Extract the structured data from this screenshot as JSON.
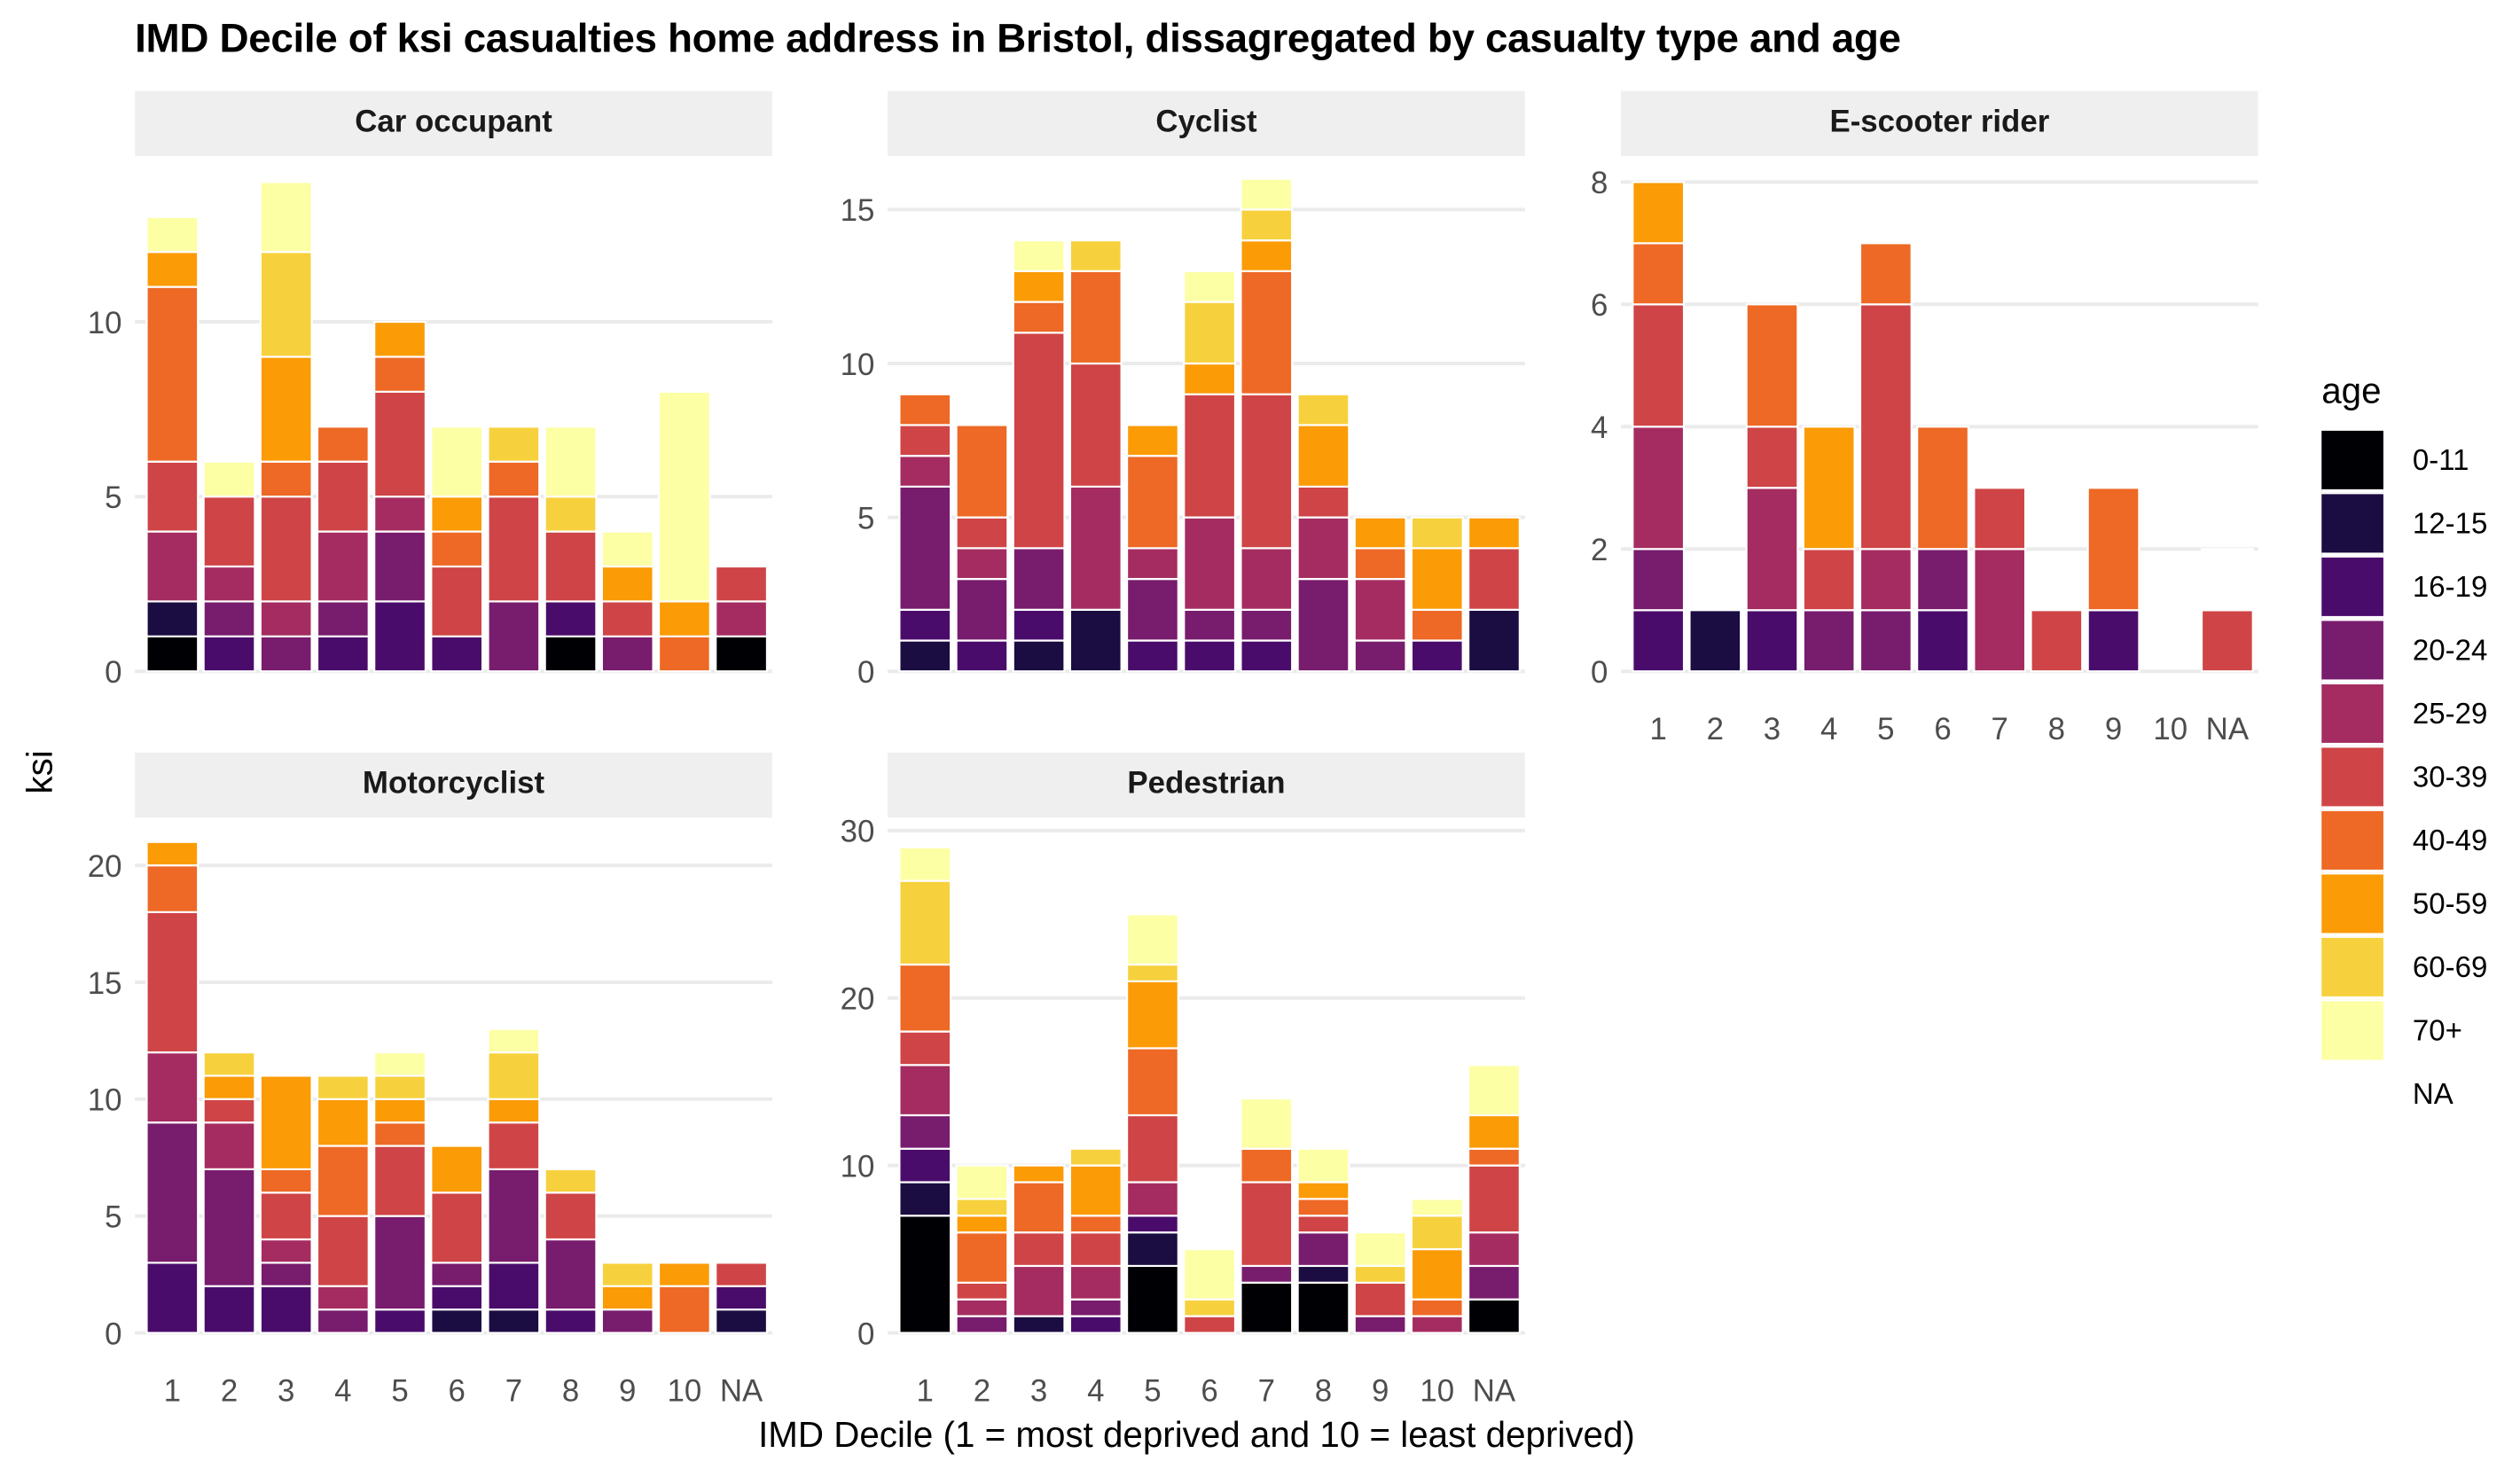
{
  "chart_data": {
    "type": "bar",
    "stacked": true,
    "title": "IMD Decile of ksi casualties home address in Bristol, dissagregated by casualty type and age",
    "xlabel": "IMD Decile (1 = most deprived and 10 = least deprived)",
    "ylabel": "ksi",
    "categories": [
      "1",
      "2",
      "3",
      "4",
      "5",
      "6",
      "7",
      "8",
      "9",
      "10",
      "NA"
    ],
    "legend": {
      "title": "age",
      "position": "right",
      "entries": [
        {
          "label": "0-11",
          "color": "#000004"
        },
        {
          "label": "12-15",
          "color": "#1B0C41"
        },
        {
          "label": "16-19",
          "color": "#4A0C6B"
        },
        {
          "label": "20-24",
          "color": "#781C6D"
        },
        {
          "label": "25-29",
          "color": "#A52C60"
        },
        {
          "label": "30-39",
          "color": "#CF4446"
        },
        {
          "label": "40-49",
          "color": "#ED6925"
        },
        {
          "label": "50-59",
          "color": "#FB9B06"
        },
        {
          "label": "60-69",
          "color": "#F7D13D"
        },
        {
          "label": "70+",
          "color": "#FCFFA4"
        },
        {
          "label": "NA",
          "color": "#FFFFFF"
        }
      ]
    },
    "grid": true,
    "panels": [
      {
        "name": "Car occupant",
        "ylim": [
          0,
          14
        ],
        "yticks": [
          0,
          5,
          10
        ],
        "show_x_ticks": false,
        "series": [
          {
            "name": "0-11",
            "values": [
              1,
              0,
              0,
              0,
              0,
              0,
              0,
              1,
              0,
              0,
              1
            ]
          },
          {
            "name": "12-15",
            "values": [
              1,
              0,
              0,
              0,
              0,
              0,
              0,
              0,
              0,
              0,
              0
            ]
          },
          {
            "name": "16-19",
            "values": [
              0,
              1,
              0,
              1,
              2,
              1,
              0,
              1,
              0,
              0,
              0
            ]
          },
          {
            "name": "20-24",
            "values": [
              0,
              1,
              1,
              1,
              2,
              0,
              2,
              0,
              1,
              0,
              0
            ]
          },
          {
            "name": "25-29",
            "values": [
              2,
              1,
              1,
              2,
              1,
              0,
              0,
              0,
              0,
              0,
              1
            ]
          },
          {
            "name": "30-39",
            "values": [
              2,
              2,
              3,
              2,
              3,
              2,
              3,
              2,
              1,
              0,
              1
            ]
          },
          {
            "name": "40-49",
            "values": [
              5,
              0,
              1,
              1,
              1,
              1,
              1,
              0,
              0,
              1,
              0
            ]
          },
          {
            "name": "50-59",
            "values": [
              1,
              0,
              3,
              0,
              1,
              1,
              0,
              0,
              1,
              1,
              0
            ]
          },
          {
            "name": "60-69",
            "values": [
              0,
              0,
              3,
              0,
              0,
              0,
              1,
              1,
              0,
              0,
              0
            ]
          },
          {
            "name": "70+",
            "values": [
              1,
              1,
              2,
              0,
              0,
              2,
              0,
              2,
              1,
              6,
              0
            ]
          },
          {
            "name": "NA",
            "values": [
              0,
              0,
              0,
              0,
              0,
              0,
              0,
              0,
              0,
              0,
              0
            ]
          }
        ]
      },
      {
        "name": "Cyclist",
        "ylim": [
          0,
          16
        ],
        "yticks": [
          0,
          5,
          10,
          15
        ],
        "show_x_ticks": false,
        "series": [
          {
            "name": "0-11",
            "values": [
              0,
              0,
              0,
              0,
              0,
              0,
              0,
              0,
              0,
              0,
              0
            ]
          },
          {
            "name": "12-15",
            "values": [
              1,
              0,
              1,
              2,
              0,
              0,
              0,
              0,
              0,
              0,
              2
            ]
          },
          {
            "name": "16-19",
            "values": [
              1,
              1,
              1,
              0,
              1,
              1,
              1,
              0,
              0,
              1,
              0
            ]
          },
          {
            "name": "20-24",
            "values": [
              4,
              2,
              2,
              0,
              2,
              1,
              1,
              3,
              1,
              0,
              0
            ]
          },
          {
            "name": "25-29",
            "values": [
              1,
              1,
              0,
              4,
              1,
              3,
              2,
              2,
              2,
              0,
              0
            ]
          },
          {
            "name": "30-39",
            "values": [
              1,
              1,
              7,
              4,
              0,
              4,
              5,
              1,
              0,
              0,
              2
            ]
          },
          {
            "name": "40-49",
            "values": [
              1,
              3,
              1,
              3,
              3,
              0,
              4,
              0,
              1,
              1,
              0
            ]
          },
          {
            "name": "50-59",
            "values": [
              0,
              0,
              1,
              0,
              1,
              1,
              1,
              2,
              1,
              2,
              1
            ]
          },
          {
            "name": "60-69",
            "values": [
              0,
              0,
              0,
              1,
              0,
              2,
              1,
              1,
              0,
              1,
              0
            ]
          },
          {
            "name": "70+",
            "values": [
              0,
              0,
              1,
              0,
              0,
              1,
              1,
              0,
              0,
              0,
              0
            ]
          },
          {
            "name": "NA",
            "values": [
              0,
              0,
              0,
              0,
              0,
              0,
              0,
              0,
              0,
              0,
              0
            ]
          }
        ]
      },
      {
        "name": "E-scooter rider",
        "ylim": [
          0,
          8
        ],
        "yticks": [
          0,
          2,
          4,
          6,
          8
        ],
        "show_x_ticks": true,
        "series": [
          {
            "name": "0-11",
            "values": [
              0,
              0,
              0,
              0,
              0,
              0,
              0,
              0,
              0,
              0,
              0
            ]
          },
          {
            "name": "12-15",
            "values": [
              0,
              1,
              0,
              0,
              0,
              0,
              0,
              0,
              0,
              0,
              0
            ]
          },
          {
            "name": "16-19",
            "values": [
              1,
              0,
              1,
              0,
              0,
              1,
              0,
              0,
              1,
              0,
              0
            ]
          },
          {
            "name": "20-24",
            "values": [
              1,
              0,
              0,
              1,
              1,
              1,
              0,
              0,
              0,
              0,
              0
            ]
          },
          {
            "name": "25-29",
            "values": [
              2,
              0,
              2,
              0,
              1,
              0,
              2,
              0,
              0,
              0,
              0
            ]
          },
          {
            "name": "30-39",
            "values": [
              2,
              0,
              1,
              1,
              4,
              0,
              1,
              1,
              0,
              0,
              1
            ]
          },
          {
            "name": "40-49",
            "values": [
              1,
              0,
              2,
              0,
              1,
              2,
              0,
              0,
              2,
              0,
              0
            ]
          },
          {
            "name": "50-59",
            "values": [
              1,
              0,
              0,
              2,
              0,
              0,
              0,
              0,
              0,
              0,
              0
            ]
          },
          {
            "name": "60-69",
            "values": [
              0,
              0,
              0,
              0,
              0,
              0,
              0,
              0,
              0,
              0,
              0
            ]
          },
          {
            "name": "70+",
            "values": [
              0,
              0,
              0,
              0,
              0,
              0,
              0,
              0,
              0,
              0,
              0
            ]
          },
          {
            "name": "NA",
            "values": [
              0,
              0,
              0,
              0,
              0,
              0,
              0,
              0,
              0,
              0,
              1
            ]
          }
        ]
      },
      {
        "name": "Motorcyclist",
        "ylim": [
          0,
          21
        ],
        "yticks": [
          0,
          5,
          10,
          15,
          20
        ],
        "show_x_ticks": true,
        "series": [
          {
            "name": "0-11",
            "values": [
              0,
              0,
              0,
              0,
              0,
              0,
              0,
              0,
              0,
              0,
              0
            ]
          },
          {
            "name": "12-15",
            "values": [
              0,
              0,
              0,
              0,
              0,
              1,
              1,
              0,
              0,
              0,
              1
            ]
          },
          {
            "name": "16-19",
            "values": [
              3,
              2,
              2,
              0,
              1,
              1,
              2,
              1,
              0,
              0,
              1
            ]
          },
          {
            "name": "20-24",
            "values": [
              6,
              5,
              1,
              1,
              4,
              1,
              4,
              3,
              1,
              0,
              0
            ]
          },
          {
            "name": "25-29",
            "values": [
              3,
              2,
              1,
              1,
              0,
              0,
              0,
              0,
              0,
              0,
              0
            ]
          },
          {
            "name": "30-39",
            "values": [
              6,
              1,
              2,
              3,
              3,
              3,
              2,
              2,
              0,
              0,
              1
            ]
          },
          {
            "name": "40-49",
            "values": [
              2,
              0,
              1,
              3,
              1,
              0,
              0,
              0,
              0,
              2,
              0
            ]
          },
          {
            "name": "50-59",
            "values": [
              1,
              1,
              4,
              2,
              1,
              2,
              1,
              0,
              1,
              1,
              0
            ]
          },
          {
            "name": "60-69",
            "values": [
              0,
              1,
              0,
              1,
              1,
              0,
              2,
              1,
              1,
              0,
              0
            ]
          },
          {
            "name": "70+",
            "values": [
              0,
              0,
              0,
              0,
              1,
              0,
              1,
              0,
              0,
              0,
              0
            ]
          },
          {
            "name": "NA",
            "values": [
              0,
              0,
              0,
              0,
              0,
              0,
              0,
              0,
              0,
              0,
              0
            ]
          }
        ]
      },
      {
        "name": "Pedestrian",
        "ylim": [
          0,
          30
        ],
        "yticks": [
          0,
          10,
          20,
          30
        ],
        "show_x_ticks": true,
        "series": [
          {
            "name": "0-11",
            "values": [
              7,
              0,
              0,
              0,
              4,
              0,
              3,
              3,
              0,
              0,
              2
            ]
          },
          {
            "name": "12-15",
            "values": [
              2,
              0,
              1,
              0,
              2,
              0,
              0,
              1,
              0,
              0,
              0
            ]
          },
          {
            "name": "16-19",
            "values": [
              2,
              0,
              0,
              1,
              1,
              0,
              0,
              0,
              0,
              0,
              0
            ]
          },
          {
            "name": "20-24",
            "values": [
              2,
              1,
              0,
              1,
              0,
              0,
              1,
              2,
              1,
              0,
              2
            ]
          },
          {
            "name": "25-29",
            "values": [
              3,
              1,
              3,
              2,
              2,
              0,
              0,
              0,
              0,
              1,
              2
            ]
          },
          {
            "name": "30-39",
            "values": [
              2,
              1,
              2,
              2,
              4,
              1,
              5,
              1,
              2,
              0,
              4
            ]
          },
          {
            "name": "40-49",
            "values": [
              4,
              3,
              3,
              1,
              4,
              0,
              2,
              1,
              0,
              1,
              1
            ]
          },
          {
            "name": "50-59",
            "values": [
              0,
              1,
              1,
              3,
              4,
              0,
              0,
              1,
              0,
              3,
              2
            ]
          },
          {
            "name": "60-69",
            "values": [
              5,
              1,
              0,
              1,
              1,
              1,
              0,
              0,
              1,
              2,
              0
            ]
          },
          {
            "name": "70+",
            "values": [
              2,
              2,
              0,
              0,
              3,
              3,
              3,
              2,
              2,
              1,
              3
            ]
          },
          {
            "name": "NA",
            "values": [
              0,
              0,
              0,
              0,
              0,
              0,
              0,
              0,
              0,
              0,
              0
            ]
          }
        ]
      }
    ]
  }
}
